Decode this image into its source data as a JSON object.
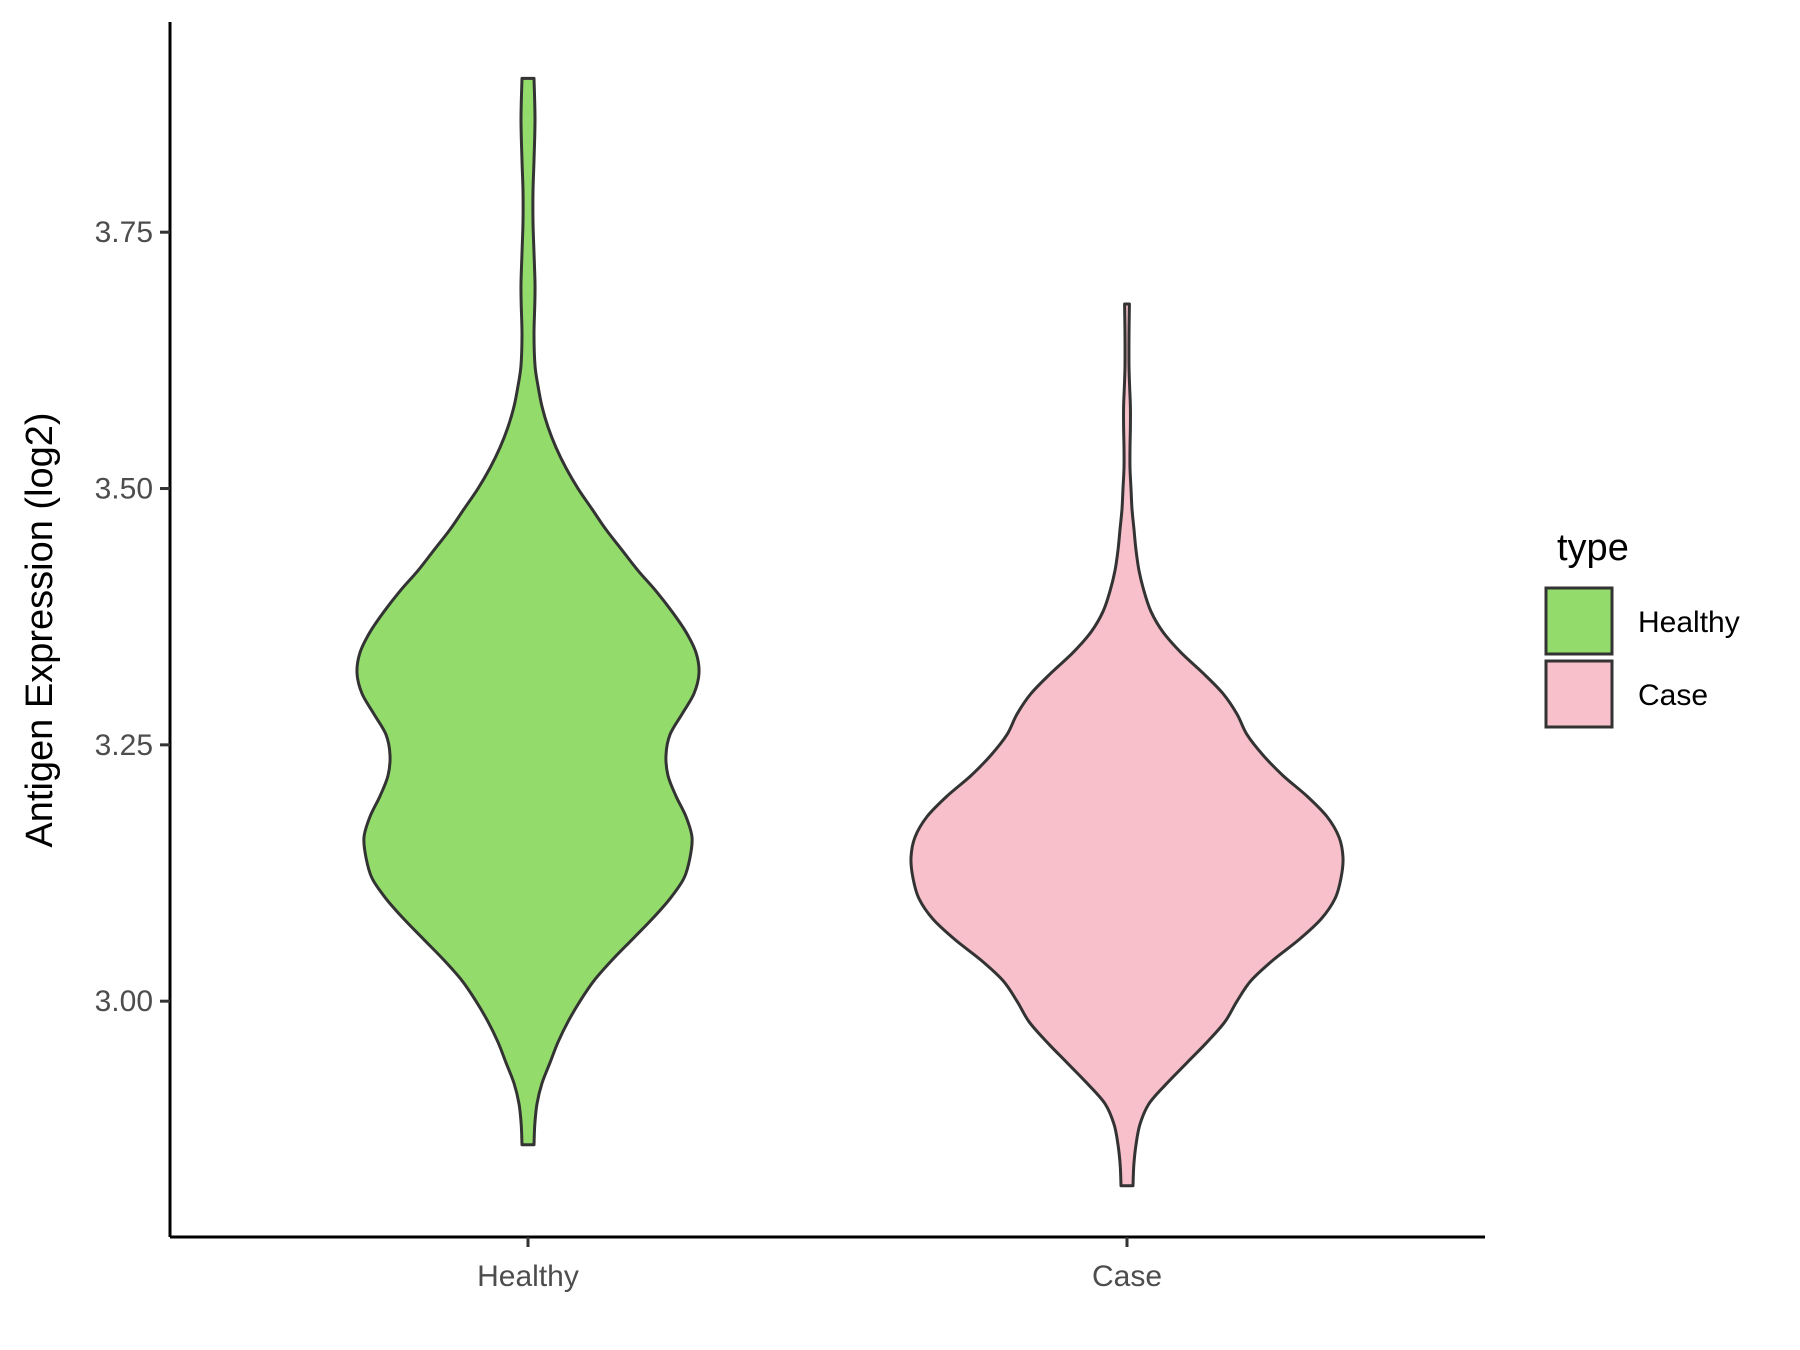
{
  "chart_data": {
    "type": "violin",
    "title": "",
    "xlabel": "",
    "ylabel": "Antigen Expression (log2)",
    "ylim": [
      2.77,
      3.955
    ],
    "yticks": [
      3.0,
      3.25,
      3.5,
      3.75
    ],
    "ytick_labels": [
      "3.00",
      "3.25",
      "3.50",
      "3.75"
    ],
    "categories": [
      "Healthy",
      "Case"
    ],
    "series": [
      {
        "name": "Healthy",
        "color": "#93dc6b",
        "min": 2.86,
        "max": 3.9,
        "density": [
          [
            2.86,
            0.03
          ],
          [
            2.88,
            0.034
          ],
          [
            2.9,
            0.045
          ],
          [
            2.92,
            0.07
          ],
          [
            2.94,
            0.11
          ],
          [
            2.96,
            0.15
          ],
          [
            2.98,
            0.2
          ],
          [
            3.0,
            0.26
          ],
          [
            3.02,
            0.33
          ],
          [
            3.04,
            0.42
          ],
          [
            3.06,
            0.52
          ],
          [
            3.08,
            0.62
          ],
          [
            3.1,
            0.71
          ],
          [
            3.12,
            0.78
          ],
          [
            3.14,
            0.81
          ],
          [
            3.16,
            0.82
          ],
          [
            3.18,
            0.79
          ],
          [
            3.2,
            0.74
          ],
          [
            3.22,
            0.7
          ],
          [
            3.24,
            0.69
          ],
          [
            3.26,
            0.71
          ],
          [
            3.28,
            0.77
          ],
          [
            3.3,
            0.83
          ],
          [
            3.32,
            0.855
          ],
          [
            3.34,
            0.84
          ],
          [
            3.36,
            0.79
          ],
          [
            3.38,
            0.72
          ],
          [
            3.4,
            0.64
          ],
          [
            3.42,
            0.55
          ],
          [
            3.44,
            0.47
          ],
          [
            3.46,
            0.39
          ],
          [
            3.48,
            0.32
          ],
          [
            3.5,
            0.25
          ],
          [
            3.52,
            0.19
          ],
          [
            3.54,
            0.14
          ],
          [
            3.56,
            0.1
          ],
          [
            3.58,
            0.07
          ],
          [
            3.6,
            0.05
          ],
          [
            3.62,
            0.035
          ],
          [
            3.65,
            0.03
          ],
          [
            3.68,
            0.034
          ],
          [
            3.7,
            0.035
          ],
          [
            3.73,
            0.03
          ],
          [
            3.76,
            0.025
          ],
          [
            3.79,
            0.025
          ],
          [
            3.82,
            0.03
          ],
          [
            3.86,
            0.035
          ],
          [
            3.9,
            0.03
          ]
        ]
      },
      {
        "name": "Case",
        "color": "#f7c0cb",
        "min": 2.82,
        "max": 3.68,
        "density": [
          [
            2.82,
            0.03
          ],
          [
            2.84,
            0.034
          ],
          [
            2.86,
            0.045
          ],
          [
            2.88,
            0.065
          ],
          [
            2.9,
            0.11
          ],
          [
            2.92,
            0.2
          ],
          [
            2.94,
            0.3
          ],
          [
            2.96,
            0.4
          ],
          [
            2.98,
            0.49
          ],
          [
            3.0,
            0.55
          ],
          [
            3.02,
            0.62
          ],
          [
            3.04,
            0.73
          ],
          [
            3.06,
            0.86
          ],
          [
            3.08,
            0.97
          ],
          [
            3.1,
            1.04
          ],
          [
            3.12,
            1.07
          ],
          [
            3.14,
            1.08
          ],
          [
            3.16,
            1.06
          ],
          [
            3.18,
            1.0
          ],
          [
            3.2,
            0.9
          ],
          [
            3.22,
            0.78
          ],
          [
            3.24,
            0.68
          ],
          [
            3.26,
            0.6
          ],
          [
            3.28,
            0.55
          ],
          [
            3.3,
            0.48
          ],
          [
            3.32,
            0.38
          ],
          [
            3.34,
            0.27
          ],
          [
            3.36,
            0.18
          ],
          [
            3.38,
            0.12
          ],
          [
            3.4,
            0.085
          ],
          [
            3.42,
            0.06
          ],
          [
            3.44,
            0.045
          ],
          [
            3.46,
            0.035
          ],
          [
            3.48,
            0.025
          ],
          [
            3.5,
            0.02
          ],
          [
            3.52,
            0.015
          ],
          [
            3.54,
            0.015
          ],
          [
            3.56,
            0.017
          ],
          [
            3.58,
            0.017
          ],
          [
            3.6,
            0.013
          ],
          [
            3.62,
            0.01
          ],
          [
            3.65,
            0.01
          ],
          [
            3.68,
            0.012
          ]
        ]
      }
    ],
    "legend": {
      "title": "type",
      "position": "right",
      "entries": [
        "Healthy",
        "Case"
      ]
    },
    "grid": false
  }
}
